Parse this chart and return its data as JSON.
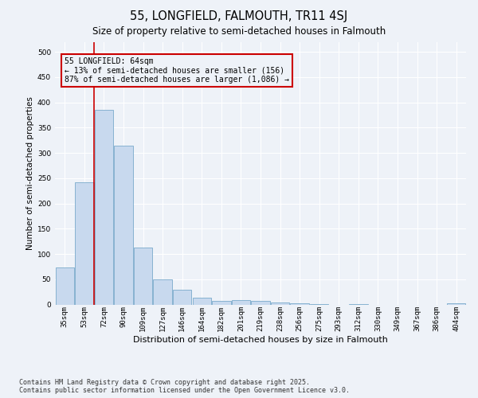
{
  "title_line1": "55, LONGFIELD, FALMOUTH, TR11 4SJ",
  "title_line2": "Size of property relative to semi-detached houses in Falmouth",
  "xlabel": "Distribution of semi-detached houses by size in Falmouth",
  "ylabel": "Number of semi-detached properties",
  "property_label": "55 LONGFIELD: 64sqm",
  "smaller_pct": "13% of semi-detached houses are smaller (156)",
  "larger_pct": "87% of semi-detached houses are larger (1,086)",
  "categories": [
    "35sqm",
    "53sqm",
    "72sqm",
    "90sqm",
    "109sqm",
    "127sqm",
    "146sqm",
    "164sqm",
    "182sqm",
    "201sqm",
    "219sqm",
    "238sqm",
    "256sqm",
    "275sqm",
    "293sqm",
    "312sqm",
    "330sqm",
    "349sqm",
    "367sqm",
    "386sqm",
    "404sqm"
  ],
  "values": [
    73,
    242,
    385,
    314,
    113,
    50,
    29,
    13,
    7,
    8,
    7,
    4,
    2,
    1,
    0,
    1,
    0,
    0,
    0,
    0,
    3
  ],
  "bar_color": "#c8d9ee",
  "bar_edge_color": "#7aaacb",
  "vline_color": "#cc0000",
  "vline_bar_index": 1,
  "annotation_box_color": "#cc0000",
  "ylim": [
    0,
    520
  ],
  "yticks": [
    0,
    50,
    100,
    150,
    200,
    250,
    300,
    350,
    400,
    450,
    500
  ],
  "footer_line1": "Contains HM Land Registry data © Crown copyright and database right 2025.",
  "footer_line2": "Contains public sector information licensed under the Open Government Licence v3.0.",
  "bg_color": "#eef2f8",
  "grid_color": "#ffffff",
  "title1_fontsize": 10.5,
  "title2_fontsize": 8.5,
  "ylabel_fontsize": 7.5,
  "xlabel_fontsize": 8.0,
  "tick_fontsize": 6.5,
  "ann_fontsize": 7.0,
  "footer_fontsize": 6.0
}
